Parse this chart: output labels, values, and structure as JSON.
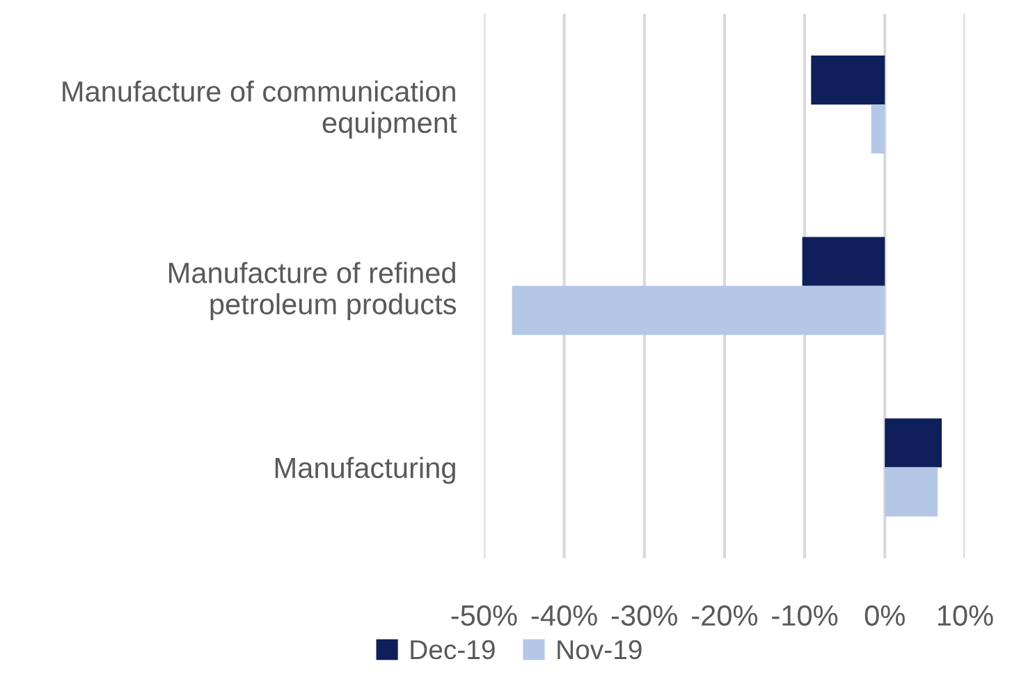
{
  "chart_data": {
    "type": "bar",
    "orientation": "horizontal",
    "categories": [
      "Manufacture of communication equipment",
      "Manufacture of refined petroleum products",
      "Manufacturing"
    ],
    "series": [
      {
        "name": "Dec-19",
        "color": "#0e1f5b",
        "values": [
          -9.2,
          -10.3,
          7.1
        ]
      },
      {
        "name": "Nov-19",
        "color": "#b4c7e7",
        "values": [
          -1.7,
          -46.5,
          6.6
        ]
      }
    ],
    "xlim": [
      -50,
      10
    ],
    "xticks": [
      {
        "value": -50,
        "label": "-50%"
      },
      {
        "value": -40,
        "label": "-40%"
      },
      {
        "value": -30,
        "label": "-30%"
      },
      {
        "value": -20,
        "label": "-20%"
      },
      {
        "value": -10,
        "label": "-10%"
      },
      {
        "value": 0,
        "label": "0%"
      },
      {
        "value": 10,
        "label": "10%"
      }
    ],
    "grid": "x",
    "legend": "bottom"
  }
}
